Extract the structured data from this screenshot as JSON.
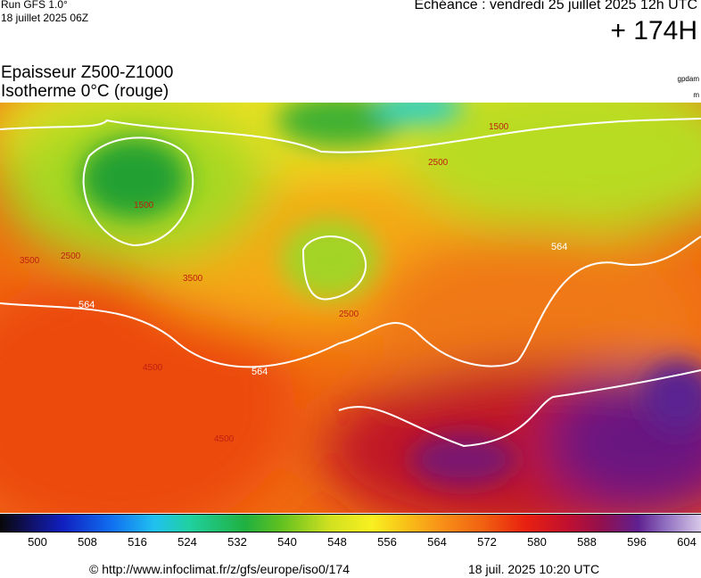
{
  "header": {
    "run": "Run GFS 1.0°",
    "run_date": "18 juillet 2025 06Z",
    "valid": "Echéance : vendredi 25 juillet 2025 12h UTC",
    "lead": "+ 174H"
  },
  "title": {
    "line1": "Epaisseur Z500-Z1000",
    "line2": "Isotherme 0°C (rouge)",
    "unit1": "gpdam",
    "unit2": "m"
  },
  "map": {
    "contour_labels": [
      "564",
      "564",
      "564",
      "2500",
      "2500",
      "2500",
      "1500",
      "1500",
      "3500",
      "3500",
      "4500",
      "4500"
    ]
  },
  "colorbar": {
    "ticks": [
      500,
      508,
      516,
      524,
      532,
      540,
      548,
      556,
      564,
      572,
      580,
      588,
      596,
      604
    ]
  },
  "footer": {
    "url": "© http://www.infoclimat.fr/z/gfs/europe/iso0/174",
    "generated": "18 juil. 2025 10:20 UTC"
  }
}
